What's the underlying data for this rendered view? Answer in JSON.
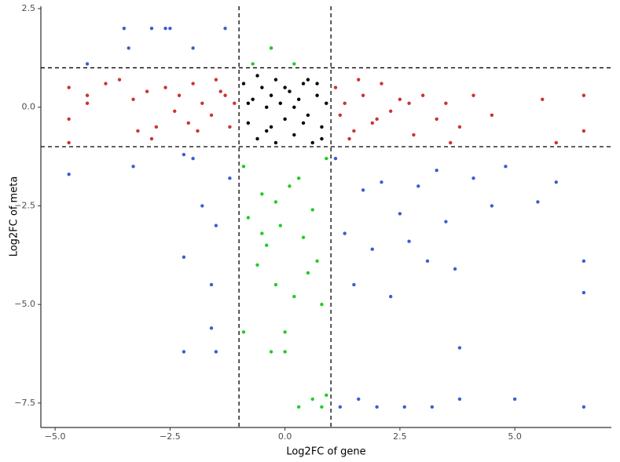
{
  "chart_data": {
    "type": "scatter",
    "xlabel": "Log2FC of gene",
    "ylabel": "Log2FC of meta",
    "xlim": [
      -5.31,
      7.1
    ],
    "ylim": [
      -8.12,
      2.56
    ],
    "xticks": [
      {
        "value": -5,
        "label": "−5.0"
      },
      {
        "value": -2.5,
        "label": "−2.5"
      },
      {
        "value": 0,
        "label": "0.0"
      },
      2.5,
      {
        "value": 5,
        "label": "5.0"
      }
    ],
    "yticks": [
      {
        "value": -7.5,
        "label": "−7.5"
      },
      {
        "value": -5,
        "label": "−5.0"
      },
      {
        "value": -2.5,
        "label": "−2.5"
      },
      {
        "value": 0,
        "label": "0.0"
      },
      2.5
    ],
    "vlines": [
      -1,
      1
    ],
    "hlines": [
      -1,
      1
    ],
    "series": [
      {
        "color": "#cc3333",
        "x": [
          -4.7,
          -4.7,
          -4.7,
          -4.3,
          -4.3,
          -3.9,
          -3.6,
          -3.3,
          -3.2,
          -3.0,
          -2.8,
          -2.6,
          -2.4,
          -2.3,
          -2.1,
          -2.0,
          -1.8,
          -1.6,
          -1.5,
          -1.3,
          -1.2,
          -1.1,
          -2.9,
          -1.9,
          -1.4,
          1.1,
          1.2,
          1.3,
          1.5,
          1.7,
          1.9,
          2.1,
          2.3,
          2.5,
          2.8,
          3.0,
          3.3,
          3.5,
          3.8,
          4.1,
          4.5,
          5.6,
          5.9,
          6.5,
          6.5,
          1.4,
          1.6,
          2.0,
          2.7,
          3.6
        ],
        "y": [
          0.5,
          -0.3,
          -0.9,
          0.3,
          0.1,
          0.6,
          0.7,
          0.2,
          -0.6,
          0.4,
          -0.5,
          0.5,
          -0.1,
          0.3,
          -0.4,
          0.6,
          0.1,
          -0.2,
          0.7,
          0.3,
          -0.5,
          0.1,
          -0.8,
          -0.6,
          0.4,
          0.5,
          -0.2,
          0.1,
          -0.6,
          0.3,
          -0.4,
          0.6,
          -0.1,
          0.2,
          -0.7,
          0.3,
          -0.3,
          0.1,
          -0.5,
          0.3,
          -0.2,
          0.2,
          -0.9,
          0.3,
          -0.6,
          -0.8,
          0.7,
          -0.3,
          0.1,
          -0.9
        ]
      },
      {
        "color": "#000000",
        "x": [
          -0.9,
          -0.8,
          -0.7,
          -0.6,
          -0.5,
          -0.4,
          -0.3,
          -0.2,
          -0.1,
          0.0,
          0.1,
          0.2,
          0.3,
          0.4,
          0.5,
          0.6,
          0.7,
          0.8,
          0.9,
          -0.6,
          -0.2,
          0.2,
          0.5,
          0.8,
          -0.8,
          -0.4,
          0.0,
          0.4,
          0.7,
          -0.3
        ],
        "y": [
          0.6,
          -0.4,
          0.2,
          -0.8,
          0.5,
          0.0,
          -0.5,
          0.7,
          0.1,
          -0.3,
          0.4,
          -0.7,
          0.2,
          0.6,
          -0.2,
          -0.9,
          0.3,
          -0.5,
          0.1,
          0.8,
          -0.9,
          0.0,
          0.7,
          -0.8,
          0.1,
          -0.6,
          0.5,
          -0.4,
          0.6,
          0.3
        ]
      },
      {
        "color": "#22cc22",
        "x": [
          -0.9,
          -0.8,
          -0.6,
          -0.5,
          -0.4,
          -0.3,
          -0.2,
          -0.1,
          0.0,
          0.1,
          0.2,
          0.3,
          0.4,
          0.5,
          0.6,
          0.7,
          0.8,
          0.9,
          -0.7,
          -0.3,
          0.0,
          0.3,
          0.6,
          0.8,
          -0.2,
          -0.5,
          0.9,
          -0.9,
          -0.3,
          0.2
        ],
        "y": [
          -1.5,
          -2.8,
          -4.0,
          -2.2,
          -3.5,
          -6.2,
          -4.5,
          -3.0,
          -5.7,
          -2.0,
          -4.8,
          -1.8,
          -3.3,
          -4.2,
          -2.6,
          -3.9,
          -5.0,
          -1.3,
          1.1,
          1.5,
          -6.2,
          -7.6,
          -7.4,
          -7.6,
          -2.4,
          -3.2,
          -7.3,
          -5.7,
          1.5,
          1.1
        ]
      },
      {
        "color": "#3b5fcf",
        "x": [
          -4.7,
          -4.3,
          -3.5,
          -3.3,
          -2.9,
          -2.6,
          -2.5,
          -2.0,
          -1.3,
          -3.4,
          -2.2,
          -2.2,
          -1.8,
          -1.6,
          -1.5,
          -1.2,
          -2.0,
          -1.6,
          -2.2,
          -1.5,
          1.1,
          1.3,
          1.5,
          1.7,
          1.9,
          2.1,
          2.3,
          2.5,
          2.7,
          2.9,
          3.1,
          3.3,
          3.5,
          3.7,
          3.8,
          4.1,
          4.5,
          4.8,
          5.5,
          5.9,
          6.5,
          6.5,
          1.2,
          1.6,
          2.0,
          2.6,
          3.2,
          3.8,
          6.5,
          5.0
        ],
        "y": [
          -1.7,
          1.1,
          2.0,
          -1.5,
          2.0,
          2.0,
          2.0,
          1.5,
          2.0,
          1.5,
          -3.8,
          -6.2,
          -2.5,
          -4.5,
          -3.0,
          -1.8,
          -1.3,
          -5.6,
          -1.2,
          -6.2,
          -1.3,
          -3.2,
          -4.5,
          -2.1,
          -3.6,
          -1.9,
          -4.8,
          -2.7,
          -3.4,
          -2.0,
          -3.9,
          -1.6,
          -2.9,
          -4.1,
          -6.1,
          -1.8,
          -2.5,
          -1.5,
          -2.4,
          -1.9,
          -3.9,
          -4.7,
          -7.6,
          -7.4,
          -7.6,
          -7.6,
          -7.6,
          -7.4,
          -7.6,
          -7.4
        ]
      }
    ]
  }
}
